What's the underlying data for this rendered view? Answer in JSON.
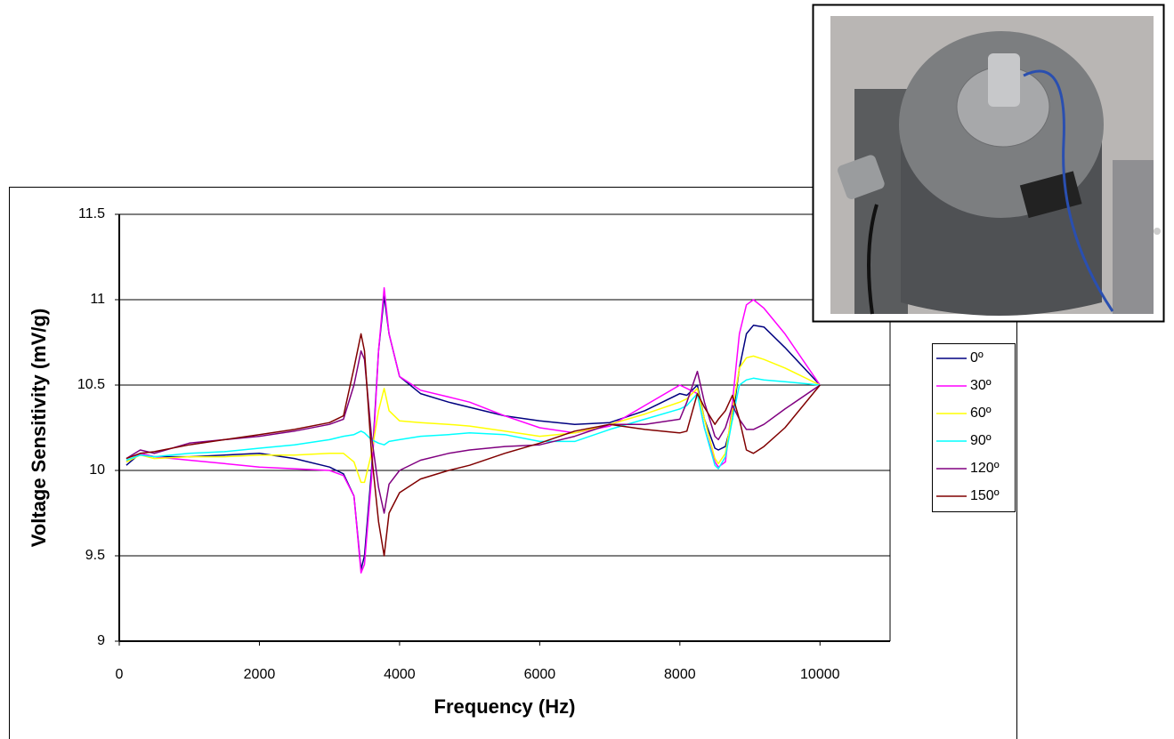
{
  "chart_data": {
    "type": "line",
    "x_label": "Frequency (Hz)",
    "y_label": "Voltage Sensitivity (mV/g)",
    "x": [
      100,
      300,
      500,
      1000,
      1500,
      2000,
      2500,
      3000,
      3200,
      3350,
      3450,
      3500,
      3600,
      3700,
      3780,
      3850,
      4000,
      4300,
      4700,
      5000,
      5500,
      6000,
      6500,
      7000,
      7500,
      8000,
      8100,
      8250,
      8350,
      8500,
      8550,
      8650,
      8750,
      8850,
      8950,
      9050,
      9200,
      9500,
      10000
    ],
    "series": [
      {
        "name": "0º",
        "color": "#000080",
        "values": [
          10.03,
          10.1,
          10.08,
          10.08,
          10.09,
          10.1,
          10.07,
          10.02,
          9.98,
          9.85,
          9.42,
          9.5,
          10.0,
          10.7,
          11.02,
          10.8,
          10.55,
          10.45,
          10.4,
          10.37,
          10.32,
          10.29,
          10.27,
          10.28,
          10.35,
          10.45,
          10.44,
          10.5,
          10.3,
          10.13,
          10.12,
          10.14,
          10.3,
          10.6,
          10.8,
          10.85,
          10.84,
          10.72,
          10.5
        ]
      },
      {
        "name": "30º",
        "color": "#ff00ff",
        "values": [
          10.05,
          10.1,
          10.08,
          10.06,
          10.04,
          10.02,
          10.01,
          10.0,
          9.97,
          9.85,
          9.4,
          9.45,
          9.95,
          10.7,
          11.07,
          10.8,
          10.55,
          10.47,
          10.43,
          10.4,
          10.32,
          10.25,
          10.22,
          10.26,
          10.38,
          10.5,
          10.48,
          10.45,
          10.25,
          10.05,
          10.02,
          10.05,
          10.4,
          10.8,
          10.97,
          11.0,
          10.95,
          10.8,
          10.5
        ]
      },
      {
        "name": "60º",
        "color": "#ffff00",
        "values": [
          10.05,
          10.09,
          10.07,
          10.08,
          10.08,
          10.09,
          10.09,
          10.1,
          10.1,
          10.05,
          9.93,
          9.93,
          10.1,
          10.35,
          10.48,
          10.35,
          10.29,
          10.28,
          10.27,
          10.26,
          10.23,
          10.2,
          10.22,
          10.27,
          10.33,
          10.4,
          10.42,
          10.48,
          10.3,
          10.07,
          10.04,
          10.1,
          10.35,
          10.6,
          10.66,
          10.67,
          10.65,
          10.6,
          10.5
        ]
      },
      {
        "name": "90º",
        "color": "#00ffff",
        "values": [
          10.06,
          10.09,
          10.08,
          10.1,
          10.11,
          10.13,
          10.15,
          10.18,
          10.2,
          10.21,
          10.23,
          10.22,
          10.18,
          10.16,
          10.15,
          10.17,
          10.18,
          10.2,
          10.21,
          10.22,
          10.21,
          10.17,
          10.17,
          10.24,
          10.3,
          10.36,
          10.38,
          10.45,
          10.25,
          10.03,
          10.01,
          10.08,
          10.3,
          10.5,
          10.53,
          10.54,
          10.53,
          10.52,
          10.5
        ]
      },
      {
        "name": "120º",
        "color": "#800080",
        "values": [
          10.07,
          10.12,
          10.1,
          10.16,
          10.18,
          10.2,
          10.23,
          10.27,
          10.3,
          10.5,
          10.7,
          10.65,
          10.2,
          9.9,
          9.75,
          9.92,
          10.0,
          10.06,
          10.1,
          10.12,
          10.14,
          10.15,
          10.2,
          10.27,
          10.27,
          10.3,
          10.4,
          10.58,
          10.4,
          10.2,
          10.18,
          10.25,
          10.38,
          10.3,
          10.24,
          10.24,
          10.27,
          10.36,
          10.5
        ]
      },
      {
        "name": "150º",
        "color": "#800000",
        "values": [
          10.07,
          10.1,
          10.11,
          10.15,
          10.18,
          10.21,
          10.24,
          10.28,
          10.32,
          10.6,
          10.8,
          10.7,
          10.1,
          9.7,
          9.5,
          9.75,
          9.87,
          9.95,
          10.0,
          10.03,
          10.1,
          10.16,
          10.23,
          10.27,
          10.24,
          10.22,
          10.23,
          10.45,
          10.37,
          10.27,
          10.3,
          10.35,
          10.44,
          10.3,
          10.12,
          10.1,
          10.14,
          10.25,
          10.5
        ]
      }
    ],
    "xlim": [
      0,
      11000
    ],
    "xticks": [
      0,
      2000,
      4000,
      6000,
      8000,
      10000
    ],
    "ylim": [
      9,
      11.5
    ],
    "yticks": [
      9,
      9.5,
      10,
      10.5,
      11,
      11.5
    ],
    "grid": true
  }
}
